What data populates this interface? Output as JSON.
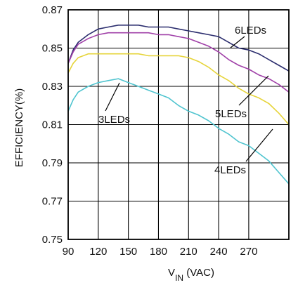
{
  "chart_data": {
    "type": "line",
    "title": "",
    "xlabel_main": "V",
    "xlabel_sub": "IN",
    "xlabel_unit": " (VAC)",
    "ylabel": "EFFICIENCY(%)",
    "xlim": [
      90,
      310
    ],
    "ylim": [
      0.75,
      0.87
    ],
    "x_ticks": [
      "90",
      "120",
      "150",
      "180",
      "210",
      "240",
      "270"
    ],
    "y_ticks": [
      "0.87",
      "0.85",
      "0.83",
      "0.81",
      "0.79",
      "0.77",
      "0.75"
    ],
    "grid": true,
    "legend": "annotations",
    "series": [
      {
        "name": "6LEDs",
        "color": "#2b2d6e",
        "x": [
          90,
          95,
          100,
          110,
          120,
          130,
          140,
          150,
          160,
          170,
          180,
          190,
          200,
          210,
          220,
          230,
          240,
          250,
          260,
          270,
          280,
          290,
          300,
          310
        ],
        "y": [
          0.842,
          0.849,
          0.853,
          0.857,
          0.86,
          0.861,
          0.862,
          0.862,
          0.862,
          0.861,
          0.861,
          0.861,
          0.86,
          0.859,
          0.858,
          0.857,
          0.856,
          0.853,
          0.85,
          0.849,
          0.847,
          0.844,
          0.841,
          0.838
        ]
      },
      {
        "name": "5LEDs",
        "color": "#a040a8",
        "x": [
          90,
          95,
          100,
          110,
          120,
          130,
          140,
          150,
          160,
          170,
          180,
          190,
          200,
          210,
          220,
          230,
          240,
          250,
          260,
          270,
          280,
          290,
          300,
          310
        ],
        "y": [
          0.842,
          0.848,
          0.852,
          0.855,
          0.857,
          0.858,
          0.858,
          0.858,
          0.858,
          0.858,
          0.857,
          0.857,
          0.856,
          0.855,
          0.853,
          0.851,
          0.848,
          0.844,
          0.841,
          0.839,
          0.836,
          0.834,
          0.831,
          0.827
        ]
      },
      {
        "name": "4LEDs",
        "color": "#e6d43a",
        "x": [
          90,
          95,
          100,
          110,
          120,
          130,
          140,
          150,
          160,
          170,
          180,
          190,
          200,
          210,
          220,
          230,
          240,
          250,
          260,
          270,
          280,
          290,
          300,
          310
        ],
        "y": [
          0.837,
          0.842,
          0.845,
          0.847,
          0.847,
          0.847,
          0.847,
          0.847,
          0.847,
          0.846,
          0.846,
          0.846,
          0.846,
          0.845,
          0.843,
          0.84,
          0.836,
          0.833,
          0.829,
          0.826,
          0.824,
          0.821,
          0.816,
          0.81
        ]
      },
      {
        "name": "3LEDs",
        "color": "#4fc4cf",
        "x": [
          90,
          95,
          100,
          110,
          120,
          130,
          140,
          150,
          160,
          170,
          180,
          190,
          200,
          210,
          220,
          230,
          240,
          250,
          260,
          270,
          280,
          290,
          300,
          310
        ],
        "y": [
          0.817,
          0.823,
          0.827,
          0.83,
          0.832,
          0.833,
          0.834,
          0.832,
          0.83,
          0.828,
          0.826,
          0.824,
          0.82,
          0.817,
          0.815,
          0.812,
          0.808,
          0.805,
          0.801,
          0.799,
          0.795,
          0.791,
          0.785,
          0.779
        ]
      }
    ],
    "annotations": [
      "6LEDs",
      "5LEDs",
      "4LEDs",
      "3LEDs"
    ]
  }
}
